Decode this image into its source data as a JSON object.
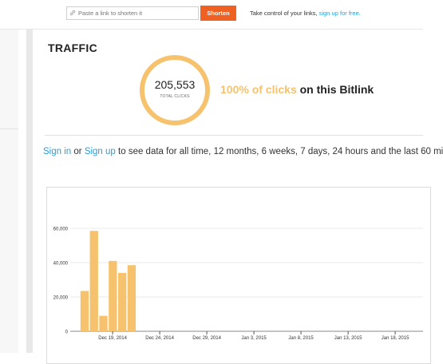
{
  "header": {
    "input_placeholder": "Paste a link to shorten it",
    "shorten_label": "Shorten",
    "tagline_text": "Take control of your links,",
    "tagline_link": "sign up for free."
  },
  "traffic": {
    "title": "TRAFFIC",
    "total_clicks": "205,553",
    "total_clicks_label": "TOTAL CLICKS",
    "percent_text": "100% of clicks",
    "percent_suffix": "on this Bitlink",
    "ring_color": "#f6c26e"
  },
  "signin": {
    "sign_in": "Sign in",
    "or": "or",
    "sign_up": "Sign up",
    "rest": "to see data for all time, 12 months, 6 weeks, 7 days, 24 hours and the last 60 mi"
  },
  "chart_data": {
    "type": "bar",
    "bar_color": "#f6c26e",
    "x": [
      "2014-12-16",
      "2014-12-17",
      "2014-12-18",
      "2014-12-19",
      "2014-12-20",
      "2014-12-21"
    ],
    "values": [
      23500,
      58500,
      9000,
      41000,
      34000,
      38500
    ],
    "ylim": [
      0,
      60000
    ],
    "y_ticks": [
      "0",
      "20,000",
      "40,000",
      "60,000"
    ],
    "x_ticks": [
      "Dec 19, 2014",
      "Dec 24, 2014",
      "Dec 29, 2014",
      "Jan 3, 2015",
      "Jan 8, 2015",
      "Jan 13, 2015",
      "Jan 18, 2015"
    ],
    "x_tick_dates": [
      "2014-12-19",
      "2014-12-24",
      "2014-12-29",
      "2015-01-03",
      "2015-01-08",
      "2015-01-13",
      "2015-01-18"
    ],
    "grid": true,
    "title": "",
    "xlabel": "",
    "ylabel": ""
  }
}
